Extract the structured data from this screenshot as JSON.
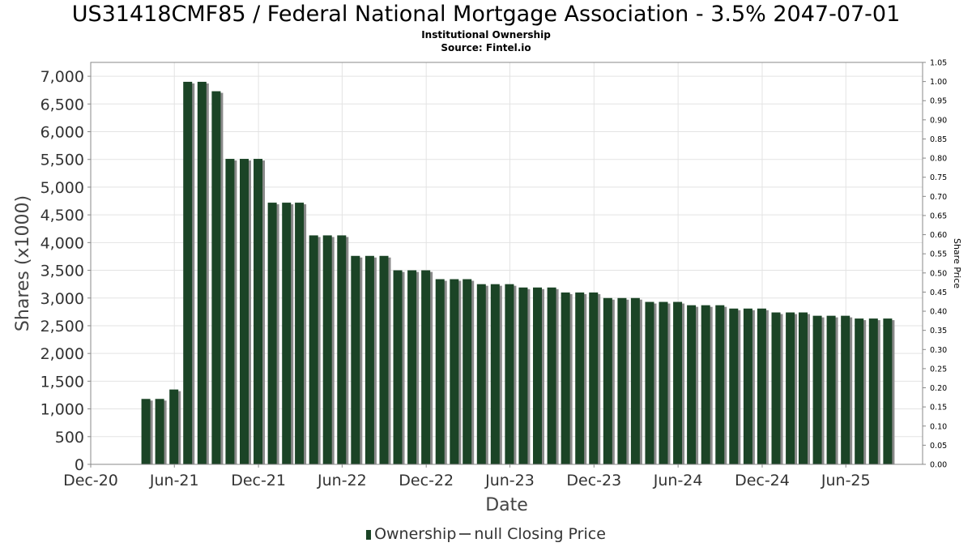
{
  "title": "US31418CMF85 / Federal National Mortgage Association - 3.5% 2047-07-01",
  "subtitle": "Institutional Ownership",
  "source": "Source: Fintel.io",
  "legend": {
    "ownership": "Ownership",
    "price": "null Closing Price"
  },
  "colors": {
    "bar": "#1b4426",
    "bar_shadow": "#8a8a8a",
    "grid": "#e3e3e3",
    "axis": "#888888"
  },
  "chart_data": {
    "type": "bar",
    "title": "US31418CMF85 / Federal National Mortgage Association - 3.5% 2047-07-01",
    "xlabel": "Date",
    "ylabel": "Shares (x1000)",
    "y2label": "Share Price",
    "xlim": [
      "2020-12-01",
      "2025-11-15"
    ],
    "ylim": [
      0,
      7250
    ],
    "y2lim": [
      0,
      1.05
    ],
    "grid": true,
    "legend_position": "bottom",
    "x_ticks": [
      "Dec-20",
      "Jun-21",
      "Dec-21",
      "Jun-22",
      "Dec-22",
      "Jun-23",
      "Dec-23",
      "Jun-24",
      "Dec-24",
      "Jun-25"
    ],
    "y_ticks": [
      "0",
      "500",
      "1,000",
      "1,500",
      "2,000",
      "2,500",
      "3,000",
      "3,500",
      "4,000",
      "4,500",
      "5,000",
      "5,500",
      "6,000",
      "6,500",
      "7,000"
    ],
    "y2_ticks": [
      "0.00",
      "0.05",
      "0.10",
      "0.15",
      "0.20",
      "0.25",
      "0.30",
      "0.35",
      "0.40",
      "0.45",
      "0.50",
      "0.55",
      "0.60",
      "0.65",
      "0.70",
      "0.75",
      "0.80",
      "0.85",
      "0.90",
      "0.95",
      "1.00",
      "1.05"
    ],
    "series": [
      {
        "name": "Ownership",
        "x": [
          "2021-03-31",
          "2021-04-30",
          "2021-05-31",
          "2021-06-30",
          "2021-07-31",
          "2021-08-31",
          "2021-09-30",
          "2021-10-31",
          "2021-11-30",
          "2021-12-31",
          "2022-01-31",
          "2022-02-28",
          "2022-03-31",
          "2022-04-30",
          "2022-05-31",
          "2022-06-30",
          "2022-07-31",
          "2022-08-31",
          "2022-09-30",
          "2022-10-31",
          "2022-11-30",
          "2022-12-31",
          "2023-01-31",
          "2023-02-28",
          "2023-03-31",
          "2023-04-30",
          "2023-05-31",
          "2023-06-30",
          "2023-07-31",
          "2023-08-31",
          "2023-09-30",
          "2023-10-31",
          "2023-11-30",
          "2023-12-31",
          "2024-01-31",
          "2024-02-29",
          "2024-03-31",
          "2024-04-30",
          "2024-05-31",
          "2024-06-30",
          "2024-07-31",
          "2024-08-31",
          "2024-09-30",
          "2024-10-31",
          "2024-11-30",
          "2024-12-31",
          "2025-01-31",
          "2025-02-28",
          "2025-03-31",
          "2025-04-30",
          "2025-05-31",
          "2025-06-30",
          "2025-07-31",
          "2025-08-31"
        ],
        "values": [
          1180,
          1180,
          1350,
          6900,
          6900,
          6730,
          5510,
          5510,
          5510,
          4720,
          4720,
          4720,
          4130,
          4130,
          4130,
          3760,
          3760,
          3760,
          3500,
          3500,
          3500,
          3340,
          3340,
          3340,
          3250,
          3250,
          3250,
          3190,
          3190,
          3190,
          3100,
          3100,
          3100,
          3000,
          3000,
          3000,
          2930,
          2930,
          2930,
          2870,
          2870,
          2870,
          2810,
          2810,
          2810,
          2740,
          2740,
          2740,
          2680,
          2680,
          2680,
          2630,
          2630,
          2630
        ]
      }
    ]
  }
}
